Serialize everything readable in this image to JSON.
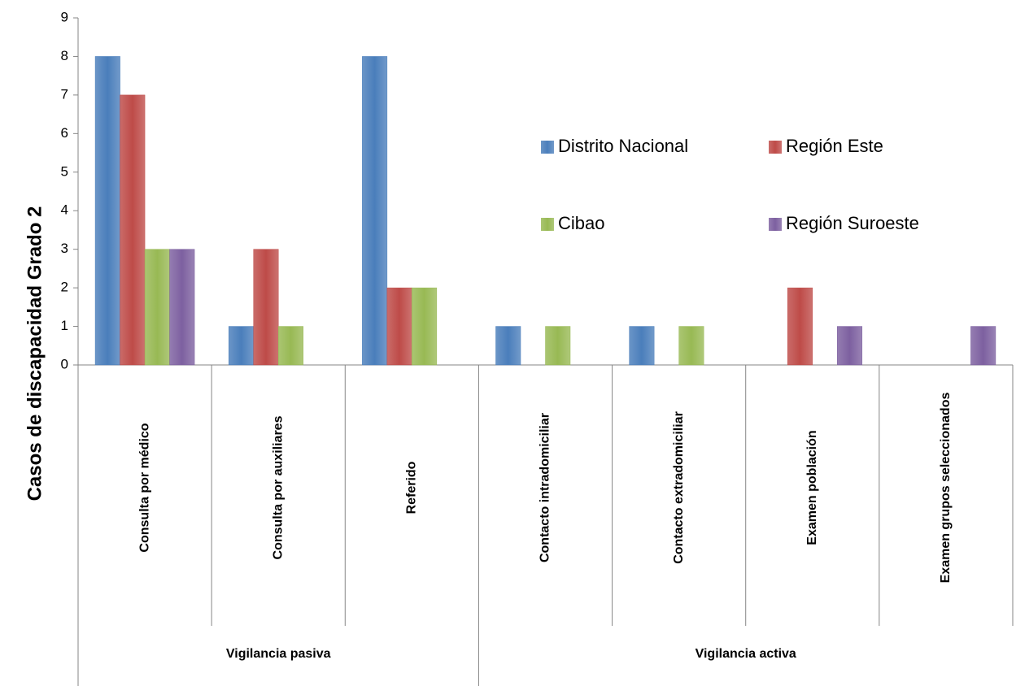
{
  "chart_data": {
    "type": "bar",
    "y_label": "Casos de discapacidad Grado 2",
    "categories": [
      "Consulta por médico",
      "Consulta por auxiliares",
      "Referido",
      "Contacto intradomiciliar",
      "Contacto extradomiciliar",
      "Examen población",
      "Examen grupos seleccionados"
    ],
    "groups": [
      "Vigilancia pasiva",
      "Vigilancia activa"
    ],
    "series": [
      {
        "name": "Distrito Nacional",
        "color": "#4a7ebb",
        "values": [
          8,
          1,
          8,
          1,
          1,
          0,
          0
        ]
      },
      {
        "name": "Región Este",
        "color": "#be4b48",
        "values": [
          7,
          3,
          2,
          0,
          0,
          2,
          0
        ]
      },
      {
        "name": "Cibao",
        "color": "#98b954",
        "values": [
          3,
          1,
          2,
          1,
          1,
          0,
          0
        ]
      },
      {
        "name": "Región Suroeste",
        "color": "#7d60a0",
        "values": [
          3,
          0,
          0,
          0,
          0,
          1,
          1
        ]
      }
    ],
    "ylim": [
      0,
      9
    ],
    "yticks": [
      0,
      1,
      2,
      3,
      4,
      5,
      6,
      7,
      8,
      9
    ],
    "grid": false
  }
}
